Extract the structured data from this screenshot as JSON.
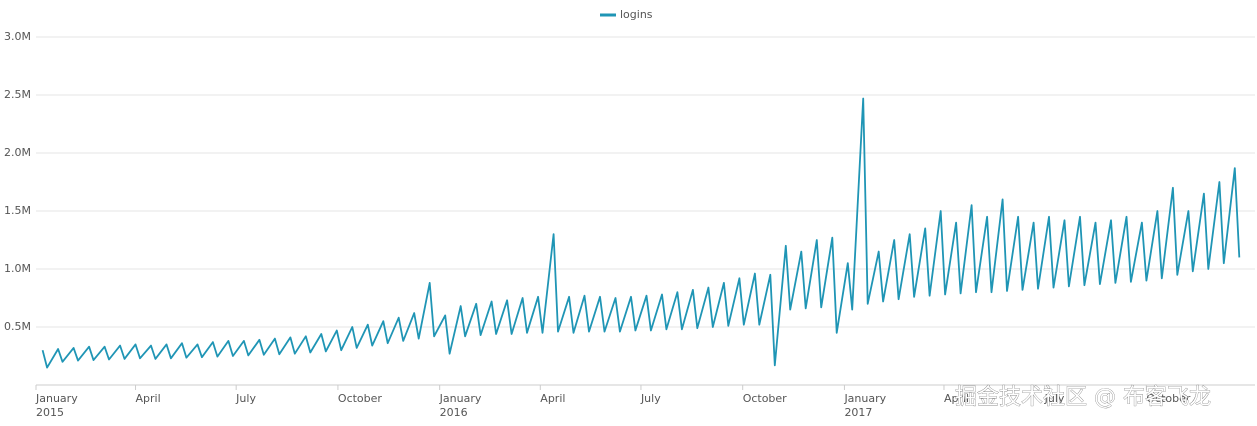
{
  "chart_data": {
    "type": "line",
    "x": [
      "2015-01-07",
      "2015-01-11",
      "2015-01-21",
      "2015-01-25",
      "2015-02-04",
      "2015-02-08",
      "2015-02-18",
      "2015-02-22",
      "2015-03-04",
      "2015-03-08",
      "2015-03-18",
      "2015-03-22",
      "2015-04-01",
      "2015-04-05",
      "2015-04-15",
      "2015-04-19",
      "2015-04-29",
      "2015-05-03",
      "2015-05-13",
      "2015-05-17",
      "2015-05-27",
      "2015-05-31",
      "2015-06-10",
      "2015-06-14",
      "2015-06-24",
      "2015-06-28",
      "2015-07-08",
      "2015-07-12",
      "2015-07-22",
      "2015-07-26",
      "2015-08-05",
      "2015-08-09",
      "2015-08-19",
      "2015-08-23",
      "2015-09-02",
      "2015-09-06",
      "2015-09-16",
      "2015-09-20",
      "2015-09-30",
      "2015-10-04",
      "2015-10-14",
      "2015-10-18",
      "2015-10-28",
      "2015-11-01",
      "2015-11-11",
      "2015-11-15",
      "2015-11-25",
      "2015-11-29",
      "2015-12-09",
      "2015-12-13",
      "2015-12-23",
      "2015-12-27",
      "2016-01-06",
      "2016-01-10",
      "2016-01-20",
      "2016-01-24",
      "2016-02-03",
      "2016-02-07",
      "2016-02-17",
      "2016-02-21",
      "2016-03-02",
      "2016-03-06",
      "2016-03-16",
      "2016-03-20",
      "2016-03-30",
      "2016-04-03",
      "2016-04-13",
      "2016-04-17",
      "2016-04-27",
      "2016-05-01",
      "2016-05-11",
      "2016-05-15",
      "2016-05-25",
      "2016-05-29",
      "2016-06-08",
      "2016-06-12",
      "2016-06-22",
      "2016-06-26",
      "2016-07-06",
      "2016-07-10",
      "2016-07-20",
      "2016-07-24",
      "2016-08-03",
      "2016-08-07",
      "2016-08-17",
      "2016-08-21",
      "2016-08-31",
      "2016-09-04",
      "2016-09-14",
      "2016-09-18",
      "2016-09-28",
      "2016-10-02",
      "2016-10-12",
      "2016-10-16",
      "2016-10-26",
      "2016-10-30",
      "2016-11-09",
      "2016-11-13",
      "2016-11-23",
      "2016-11-27",
      "2016-12-07",
      "2016-12-11",
      "2016-12-21",
      "2016-12-25",
      "2017-01-04",
      "2017-01-08",
      "2017-01-18",
      "2017-01-22",
      "2017-02-01",
      "2017-02-05",
      "2017-02-15",
      "2017-02-19",
      "2017-03-01",
      "2017-03-05",
      "2017-03-15",
      "2017-03-19",
      "2017-03-29",
      "2017-04-02",
      "2017-04-12",
      "2017-04-16",
      "2017-04-26",
      "2017-04-30",
      "2017-05-10",
      "2017-05-14",
      "2017-05-24",
      "2017-05-28",
      "2017-06-07",
      "2017-06-11",
      "2017-06-21",
      "2017-06-25",
      "2017-07-05",
      "2017-07-09",
      "2017-07-19",
      "2017-07-23",
      "2017-08-02",
      "2017-08-06",
      "2017-08-16",
      "2017-08-20",
      "2017-08-30",
      "2017-09-03",
      "2017-09-13",
      "2017-09-17",
      "2017-09-27",
      "2017-10-01",
      "2017-10-11",
      "2017-10-15",
      "2017-10-25",
      "2017-10-29",
      "2017-11-08",
      "2017-11-12",
      "2017-11-22",
      "2017-11-26",
      "2017-12-06",
      "2017-12-10",
      "2017-12-20",
      "2017-12-24"
    ],
    "series": [
      {
        "name": "logins",
        "color": "#1f95b5",
        "values": [
          300000,
          150000,
          310000,
          200000,
          320000,
          210000,
          330000,
          215000,
          330000,
          220000,
          340000,
          225000,
          350000,
          230000,
          340000,
          225000,
          350000,
          230000,
          360000,
          235000,
          350000,
          240000,
          370000,
          245000,
          380000,
          250000,
          380000,
          255000,
          390000,
          260000,
          400000,
          265000,
          410000,
          270000,
          420000,
          280000,
          440000,
          290000,
          470000,
          300000,
          500000,
          320000,
          520000,
          340000,
          550000,
          360000,
          580000,
          380000,
          620000,
          400000,
          880000,
          420000,
          600000,
          270000,
          680000,
          420000,
          700000,
          430000,
          720000,
          440000,
          730000,
          440000,
          750000,
          450000,
          760000,
          450000,
          1300000,
          460000,
          760000,
          450000,
          770000,
          460000,
          760000,
          460000,
          750000,
          460000,
          760000,
          470000,
          770000,
          470000,
          780000,
          480000,
          800000,
          480000,
          820000,
          490000,
          840000,
          500000,
          880000,
          510000,
          920000,
          520000,
          960000,
          520000,
          950000,
          170000,
          1200000,
          650000,
          1150000,
          660000,
          1250000,
          670000,
          1270000,
          450000,
          1050000,
          650000,
          2470000,
          700000,
          1150000,
          720000,
          1250000,
          740000,
          1300000,
          760000,
          1350000,
          770000,
          1500000,
          780000,
          1400000,
          790000,
          1550000,
          800000,
          1450000,
          800000,
          1600000,
          810000,
          1450000,
          820000,
          1400000,
          830000,
          1450000,
          840000,
          1420000,
          850000,
          1450000,
          860000,
          1400000,
          870000,
          1420000,
          880000,
          1450000,
          890000,
          1400000,
          900000,
          1500000,
          920000,
          1700000,
          950000,
          1500000,
          980000,
          1650000,
          1000000,
          1750000,
          1050000,
          1870000,
          1100000
        ]
      }
    ],
    "xlim": [
      "2015-01-01",
      "2017-12-31"
    ],
    "xticks": [
      {
        "value": "2015-01",
        "label": "January",
        "year": "2015"
      },
      {
        "value": "2015-04",
        "label": "April"
      },
      {
        "value": "2015-07",
        "label": "July"
      },
      {
        "value": "2015-10",
        "label": "October"
      },
      {
        "value": "2016-01",
        "label": "January",
        "year": "2016"
      },
      {
        "value": "2016-04",
        "label": "April"
      },
      {
        "value": "2016-07",
        "label": "July"
      },
      {
        "value": "2016-10",
        "label": "October"
      },
      {
        "value": "2017-01",
        "label": "January",
        "year": "2017"
      },
      {
        "value": "2017-04",
        "label": "April"
      },
      {
        "value": "2017-07",
        "label": "July"
      },
      {
        "value": "2017-10",
        "label": "October"
      }
    ],
    "ylim": [
      0,
      3000000
    ],
    "yticks": [
      {
        "value": 500000,
        "label": "0.5M"
      },
      {
        "value": 1000000,
        "label": "1.0M"
      },
      {
        "value": 1500000,
        "label": "1.5M"
      },
      {
        "value": 2000000,
        "label": "2.0M"
      },
      {
        "value": 2500000,
        "label": "2.5M"
      },
      {
        "value": 3000000,
        "label": "3.0M"
      }
    ],
    "grid": true,
    "legend": "top",
    "watermark": "掘金技术社区 @ 布客飞龙"
  }
}
